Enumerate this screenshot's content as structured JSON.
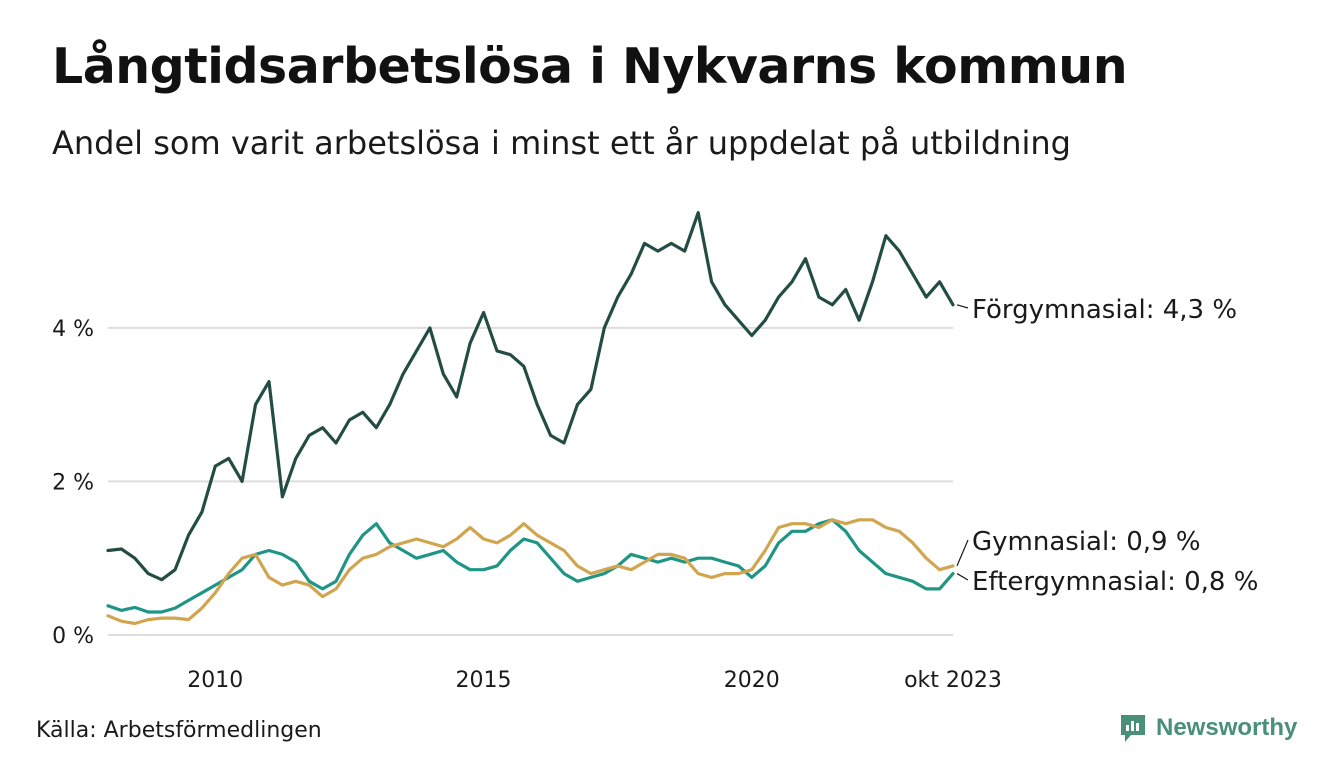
{
  "title": "Långtidsarbetslösa i Nykvarns kommun",
  "subtitle": "Andel som varit arbetslösa i minst ett år uppdelat på utbildning",
  "source": "Källa: Arbetsförmedlingen",
  "brand": "Newsworthy",
  "colors": {
    "forgymnasial": "#234d44",
    "gymnasial": "#d1a54f",
    "eftergymnasial": "#1f9585",
    "grid": "#dddddd",
    "text": "#1a1a1a",
    "brand": "#4a8f7a"
  },
  "chart_data": {
    "type": "line",
    "title": "Långtidsarbetslösa i Nykvarns kommun",
    "xlabel": "",
    "ylabel": "",
    "ylim": [
      0,
      5.6
    ],
    "xlim": [
      2008.0,
      2023.75
    ],
    "yticks": [
      0,
      2,
      4
    ],
    "ytick_labels": [
      "0 %",
      "2 %",
      "4 %"
    ],
    "xticks": [
      2010,
      2015,
      2020,
      2023.75
    ],
    "xtick_labels": [
      "2010",
      "2015",
      "2020",
      "okt 2023"
    ],
    "grid": true,
    "series": [
      {
        "name": "Förgymnasial",
        "label": "Förgymnasial: 4,3 %",
        "x": [
          2008.0,
          2008.25,
          2008.5,
          2008.75,
          2009.0,
          2009.25,
          2009.5,
          2009.75,
          2010.0,
          2010.25,
          2010.5,
          2010.75,
          2011.0,
          2011.25,
          2011.5,
          2011.75,
          2012.0,
          2012.25,
          2012.5,
          2012.75,
          2013.0,
          2013.25,
          2013.5,
          2013.75,
          2014.0,
          2014.25,
          2014.5,
          2014.75,
          2015.0,
          2015.25,
          2015.5,
          2015.75,
          2016.0,
          2016.25,
          2016.5,
          2016.75,
          2017.0,
          2017.25,
          2017.5,
          2017.75,
          2018.0,
          2018.25,
          2018.5,
          2018.75,
          2019.0,
          2019.25,
          2019.5,
          2019.75,
          2020.0,
          2020.25,
          2020.5,
          2020.75,
          2021.0,
          2021.25,
          2021.5,
          2021.75,
          2022.0,
          2022.25,
          2022.5,
          2022.75,
          2023.0,
          2023.25,
          2023.5,
          2023.75
        ],
        "values": [
          1.1,
          1.12,
          1.0,
          0.8,
          0.72,
          0.85,
          1.3,
          1.6,
          2.2,
          2.3,
          2.0,
          3.0,
          3.3,
          1.8,
          2.3,
          2.6,
          2.7,
          2.5,
          2.8,
          2.9,
          2.7,
          3.0,
          3.4,
          3.7,
          4.0,
          3.4,
          3.1,
          3.8,
          4.2,
          3.7,
          3.65,
          3.5,
          3.0,
          2.6,
          2.5,
          3.0,
          3.2,
          4.0,
          4.4,
          4.7,
          5.1,
          5.0,
          5.1,
          5.0,
          5.5,
          4.6,
          4.3,
          4.1,
          3.9,
          4.1,
          4.4,
          4.6,
          4.9,
          4.4,
          4.3,
          4.5,
          4.1,
          4.6,
          5.2,
          5.0,
          4.7,
          4.4,
          4.6,
          4.3
        ]
      },
      {
        "name": "Gymnasial",
        "label": "Gymnasial: 0,9 %",
        "x": [
          2008.0,
          2008.25,
          2008.5,
          2008.75,
          2009.0,
          2009.25,
          2009.5,
          2009.75,
          2010.0,
          2010.25,
          2010.5,
          2010.75,
          2011.0,
          2011.25,
          2011.5,
          2011.75,
          2012.0,
          2012.25,
          2012.5,
          2012.75,
          2013.0,
          2013.25,
          2013.5,
          2013.75,
          2014.0,
          2014.25,
          2014.5,
          2014.75,
          2015.0,
          2015.25,
          2015.5,
          2015.75,
          2016.0,
          2016.25,
          2016.5,
          2016.75,
          2017.0,
          2017.25,
          2017.5,
          2017.75,
          2018.0,
          2018.25,
          2018.5,
          2018.75,
          2019.0,
          2019.25,
          2019.5,
          2019.75,
          2020.0,
          2020.25,
          2020.5,
          2020.75,
          2021.0,
          2021.25,
          2021.5,
          2021.75,
          2022.0,
          2022.25,
          2022.5,
          2022.75,
          2023.0,
          2023.25,
          2023.5,
          2023.75
        ],
        "values": [
          0.25,
          0.18,
          0.15,
          0.2,
          0.22,
          0.22,
          0.2,
          0.35,
          0.55,
          0.8,
          1.0,
          1.05,
          0.75,
          0.65,
          0.7,
          0.65,
          0.5,
          0.6,
          0.85,
          1.0,
          1.05,
          1.15,
          1.2,
          1.25,
          1.2,
          1.15,
          1.25,
          1.4,
          1.25,
          1.2,
          1.3,
          1.45,
          1.3,
          1.2,
          1.1,
          0.9,
          0.8,
          0.85,
          0.9,
          0.85,
          0.95,
          1.05,
          1.05,
          1.0,
          0.8,
          0.75,
          0.8,
          0.8,
          0.85,
          1.1,
          1.4,
          1.45,
          1.45,
          1.4,
          1.5,
          1.45,
          1.5,
          1.5,
          1.4,
          1.35,
          1.2,
          1.0,
          0.85,
          0.9
        ]
      },
      {
        "name": "Eftergymnasial",
        "label": "Eftergymnasial: 0,8 %",
        "x": [
          2008.0,
          2008.25,
          2008.5,
          2008.75,
          2009.0,
          2009.25,
          2009.5,
          2009.75,
          2010.0,
          2010.25,
          2010.5,
          2010.75,
          2011.0,
          2011.25,
          2011.5,
          2011.75,
          2012.0,
          2012.25,
          2012.5,
          2012.75,
          2013.0,
          2013.25,
          2013.5,
          2013.75,
          2014.0,
          2014.25,
          2014.5,
          2014.75,
          2015.0,
          2015.25,
          2015.5,
          2015.75,
          2016.0,
          2016.25,
          2016.5,
          2016.75,
          2017.0,
          2017.25,
          2017.5,
          2017.75,
          2018.0,
          2018.25,
          2018.5,
          2018.75,
          2019.0,
          2019.25,
          2019.5,
          2019.75,
          2020.0,
          2020.25,
          2020.5,
          2020.75,
          2021.0,
          2021.25,
          2021.5,
          2021.75,
          2022.0,
          2022.25,
          2022.5,
          2022.75,
          2023.0,
          2023.25,
          2023.5,
          2023.75
        ],
        "values": [
          0.38,
          0.32,
          0.36,
          0.3,
          0.3,
          0.35,
          0.45,
          0.55,
          0.65,
          0.75,
          0.85,
          1.05,
          1.1,
          1.05,
          0.95,
          0.7,
          0.6,
          0.7,
          1.05,
          1.3,
          1.45,
          1.2,
          1.1,
          1.0,
          1.05,
          1.1,
          0.95,
          0.85,
          0.85,
          0.9,
          1.1,
          1.25,
          1.2,
          1.0,
          0.8,
          0.7,
          0.75,
          0.8,
          0.9,
          1.05,
          1.0,
          0.95,
          1.0,
          0.95,
          1.0,
          1.0,
          0.95,
          0.9,
          0.75,
          0.9,
          1.2,
          1.35,
          1.35,
          1.45,
          1.5,
          1.35,
          1.1,
          0.95,
          0.8,
          0.75,
          0.7,
          0.6,
          0.6,
          0.8
        ]
      }
    ]
  }
}
